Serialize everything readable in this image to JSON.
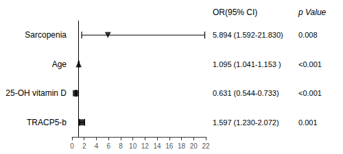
{
  "chart_data": {
    "type": "forest",
    "categories": [
      "Sarcopenia",
      "Age",
      "25-OH vitamin D",
      "TRACP5-b"
    ],
    "values": [
      5.894,
      1.095,
      0.631,
      1.597
    ],
    "ci_low": [
      1.592,
      1.041,
      0.544,
      1.23
    ],
    "ci_high": [
      21.83,
      1.153,
      0.733,
      2.072
    ],
    "markers": [
      "triangle-down",
      "triangle-up",
      "square",
      "square"
    ],
    "color": "#000000",
    "vline": 1,
    "xlim": [
      0,
      22
    ],
    "xticks": [
      0,
      2,
      4,
      6,
      8,
      10,
      12,
      14,
      16,
      18,
      20,
      22
    ],
    "grid": false,
    "columns": [
      {
        "header": "OR(95% CI)",
        "texts": [
          "5.894 (1.592-21.830)",
          "1.095 (1.041-1.153 )",
          "0.631 (0.544-0.733)",
          "1.597 (1.230-2.072)"
        ]
      },
      {
        "header": "p Value",
        "texts": [
          "0.008",
          "<0.001",
          "<0.001",
          "0.001"
        ]
      }
    ]
  }
}
